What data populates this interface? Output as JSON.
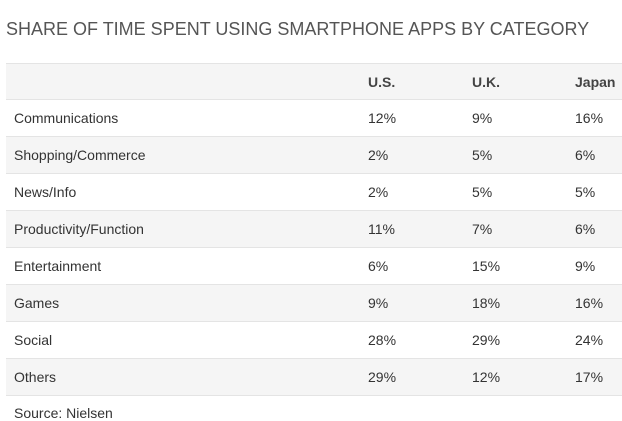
{
  "title": "SHARE OF TIME SPENT USING SMARTPHONE APPS BY CATEGORY",
  "source": "Source: Nielsen",
  "chart_data": {
    "type": "table",
    "title": "SHARE OF TIME SPENT USING SMARTPHONE APPS BY CATEGORY",
    "columns": [
      "",
      "U.S.",
      "U.K.",
      "Japan"
    ],
    "rows": [
      {
        "category": "Communications",
        "us": "12%",
        "uk": "9%",
        "japan": "16%"
      },
      {
        "category": "Shopping/Commerce",
        "us": "2%",
        "uk": "5%",
        "japan": "6%"
      },
      {
        "category": "News/Info",
        "us": "2%",
        "uk": "5%",
        "japan": "5%"
      },
      {
        "category": "Productivity/Function",
        "us": "11%",
        "uk": "7%",
        "japan": "6%"
      },
      {
        "category": "Entertainment",
        "us": "6%",
        "uk": "15%",
        "japan": "9%"
      },
      {
        "category": "Games",
        "us": "9%",
        "uk": "18%",
        "japan": "16%"
      },
      {
        "category": "Social",
        "us": "28%",
        "uk": "29%",
        "japan": "24%"
      },
      {
        "category": "Others",
        "us": "29%",
        "uk": "12%",
        "japan": "17%"
      }
    ],
    "source": "Source: Nielsen"
  }
}
